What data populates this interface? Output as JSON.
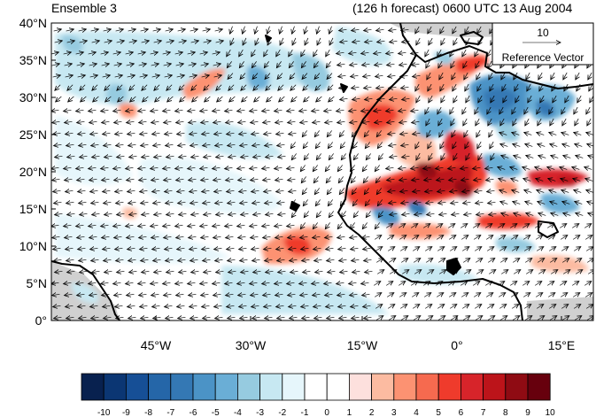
{
  "header": {
    "title_left": "Ensemble 3",
    "title_right": "(126 h forecast) 0600 UTC 13 Aug 2004"
  },
  "map": {
    "lat_labels": [
      "40°N",
      "35°N",
      "30°N",
      "25°N",
      "20°N",
      "15°N",
      "10°N",
      "5°N",
      "0°"
    ],
    "lon_labels": [
      "45°W",
      "30°W",
      "15°W",
      "0°",
      "15°E"
    ],
    "extent": {
      "lon_min": -57,
      "lon_max": 18,
      "lat_min": 0,
      "lat_max": 40
    },
    "colors": {
      "land_outline": "#000000",
      "missing": "#d0d0d0",
      "vectors": "#000000"
    }
  },
  "reference_vector": {
    "magnitude": "10",
    "label": "Reference Vector"
  },
  "colorbar": {
    "labels": [
      "-10",
      "-9",
      "-8",
      "-7",
      "-6",
      "-5",
      "-4",
      "-3",
      "-2",
      "-1",
      "0",
      "1",
      "2",
      "3",
      "4",
      "5",
      "6",
      "7",
      "8",
      "9",
      "10"
    ],
    "colors": [
      "#08214f",
      "#0b3673",
      "#164f96",
      "#2566a8",
      "#3478b4",
      "#4b93c6",
      "#6aaed6",
      "#96cbe0",
      "#c7e8f2",
      "#e6f6fb",
      "#ffffff",
      "#ffffff",
      "#fde0dd",
      "#fcbba1",
      "#fc9272",
      "#f66a4f",
      "#ef3b2c",
      "#d7242a",
      "#bc141a",
      "#8f0b13",
      "#67000d"
    ]
  }
}
